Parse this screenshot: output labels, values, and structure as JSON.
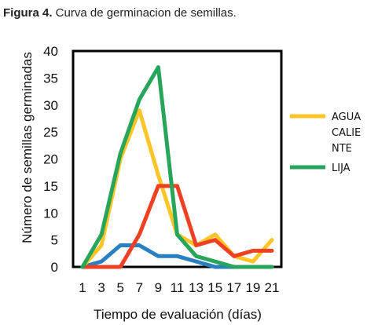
{
  "caption": {
    "figure": "Figura 4.",
    "text": " Curva de germinacion de semillas."
  },
  "chart_data": {
    "type": "line",
    "title": "",
    "xlabel": "Tiempo de evaluación (días)",
    "ylabel": "Número de semillas germinadas",
    "x": [
      1,
      3,
      5,
      7,
      9,
      11,
      13,
      15,
      17,
      19,
      21
    ],
    "xlim": [
      1,
      21
    ],
    "ylim": [
      0,
      40
    ],
    "yticks": [
      0,
      5,
      10,
      15,
      20,
      25,
      30,
      35,
      40
    ],
    "grid": false,
    "legend_position": "right",
    "series": [
      {
        "name": "AGUA CALIENTE",
        "legend_lines": [
          "AGUA",
          "CALIE",
          "NTE"
        ],
        "color": "#FFC425",
        "in_legend": true,
        "values": [
          0,
          4,
          20,
          29,
          17,
          6,
          4,
          6,
          2,
          1,
          5
        ]
      },
      {
        "name": "LIJA",
        "legend_lines": [
          "LIJA"
        ],
        "color": "#27A55A",
        "in_legend": true,
        "values": [
          0,
          6,
          21,
          31,
          37,
          6,
          2,
          1,
          0,
          0,
          0
        ]
      },
      {
        "name": "",
        "color": "#EE4123",
        "in_legend": false,
        "values": [
          0,
          0,
          0,
          6,
          15,
          15,
          4,
          5,
          2,
          3,
          3
        ]
      },
      {
        "name": "",
        "color": "#2A7FC1",
        "in_legend": false,
        "values": [
          0,
          1,
          4,
          4,
          2,
          2,
          1,
          0,
          0,
          0,
          0
        ]
      }
    ]
  }
}
